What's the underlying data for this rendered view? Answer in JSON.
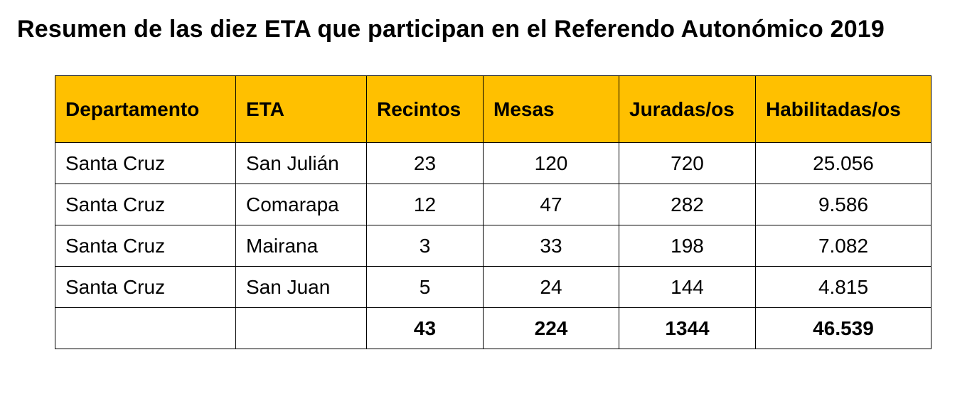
{
  "title": "Resumen de las diez ETA que participan en el Referendo Autonómico 2019",
  "colors": {
    "header_background": "#ffc000",
    "border": "#000000"
  },
  "table": {
    "headers": [
      "Departamento",
      "ETA",
      "Recintos",
      "Mesas",
      "Juradas/os",
      "Habilitadas/os"
    ],
    "rows": [
      [
        "Santa Cruz",
        "San Julián",
        "23",
        "120",
        "720",
        "25.056"
      ],
      [
        "Santa Cruz",
        "Comarapa",
        "12",
        "47",
        "282",
        "9.586"
      ],
      [
        "Santa Cruz",
        "Mairana",
        "3",
        "33",
        "198",
        "7.082"
      ],
      [
        "Santa Cruz",
        "San Juan",
        "5",
        "24",
        "144",
        "4.815"
      ]
    ],
    "totals": [
      "",
      "",
      "43",
      "224",
      "1344",
      "46.539"
    ]
  }
}
